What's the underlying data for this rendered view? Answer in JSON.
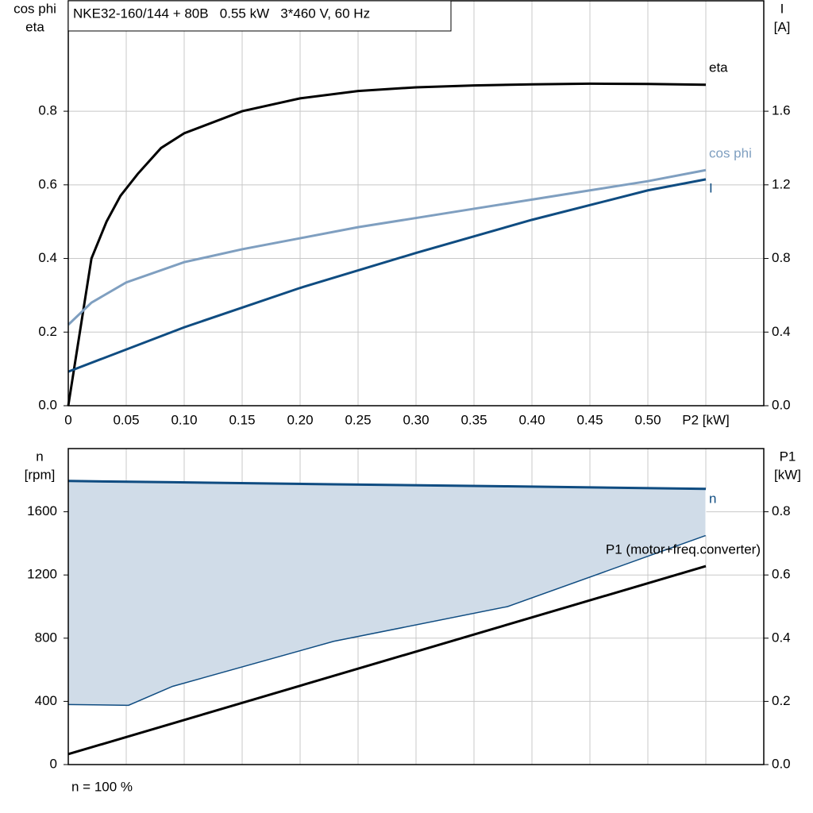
{
  "chart_data": [
    {
      "type": "line",
      "title": "NKE32-160/144 + 80B   0.55 kW   3*460 V, 60 Hz",
      "y_label": [
        "cos phi",
        "eta"
      ],
      "y2_label": [
        "I",
        "[A]"
      ],
      "xlim": [
        0,
        0.6
      ],
      "ylim": [
        0,
        1.1
      ],
      "y2lim": [
        0,
        2.2
      ],
      "xticks": [
        0,
        0.05,
        {
          "value": 0.1,
          "label": "0.10"
        },
        0.15,
        {
          "value": 0.2,
          "label": "0.20"
        },
        0.25,
        {
          "value": 0.3,
          "label": "0.30"
        },
        0.35,
        {
          "value": 0.4,
          "label": "0.40"
        },
        0.45,
        {
          "value": 0.5,
          "label": "0.50"
        },
        {
          "value": 0.55,
          "label": "P2 [kW]"
        }
      ],
      "yticks": [
        {
          "value": 0,
          "label": "0.0"
        },
        0.2,
        0.4,
        0.6,
        0.8
      ],
      "y2ticks": [
        {
          "value": 0,
          "label": "0.0"
        },
        0.4,
        0.8,
        1.2,
        1.6
      ],
      "grid": true,
      "show_xtick_labels": true,
      "series": [
        {
          "name": "eta",
          "color": "#000000",
          "x": [
            0,
            0.01,
            0.02,
            0.033,
            0.045,
            0.06,
            0.08,
            0.1,
            0.15,
            0.2,
            0.25,
            0.3,
            0.35,
            0.4,
            0.45,
            0.5,
            0.55
          ],
          "values": [
            0,
            0.2,
            0.4,
            0.5,
            0.57,
            0.63,
            0.7,
            0.74,
            0.8,
            0.835,
            0.855,
            0.865,
            0.87,
            0.873,
            0.875,
            0.874,
            0.872
          ]
        },
        {
          "name": "cos phi",
          "color": "#7f9fc0",
          "x": [
            0,
            0.02,
            0.05,
            0.1,
            0.15,
            0.2,
            0.25,
            0.3,
            0.35,
            0.4,
            0.45,
            0.5,
            0.55
          ],
          "values": [
            0.22,
            0.28,
            0.335,
            0.39,
            0.425,
            0.455,
            0.485,
            0.51,
            0.535,
            0.56,
            0.585,
            0.61,
            0.64
          ]
        },
        {
          "name": "I",
          "color": "#0f4c81",
          "axis": "y2",
          "x": [
            0,
            0.1,
            0.2,
            0.3,
            0.4,
            0.5,
            0.55
          ],
          "values": [
            0.185,
            0.426,
            0.64,
            0.83,
            1.01,
            1.17,
            1.23
          ]
        }
      ]
    },
    {
      "type": "line",
      "footer": "n = 100 %",
      "y_label": [
        "n",
        "[rpm]"
      ],
      "y2_label": [
        "P1",
        "[kW]"
      ],
      "xlim": [
        0,
        0.6
      ],
      "ylim": [
        0,
        2000
      ],
      "y2lim": [
        0,
        1
      ],
      "xticks": [
        0,
        0.05,
        0.1,
        0.15,
        0.2,
        0.25,
        0.3,
        0.35,
        0.4,
        0.45,
        0.5,
        0.55
      ],
      "yticks": [
        0,
        400,
        800,
        1200,
        1600
      ],
      "y2ticks": [
        {
          "value": 0,
          "label": "0.0"
        },
        0.2,
        0.4,
        0.6,
        0.8
      ],
      "grid": true,
      "show_xtick_labels": false,
      "series": [
        {
          "name": "n",
          "color": "#0f4c81",
          "fill": "#d0dce8",
          "x": [
            0,
            0.052,
            0.09,
            0.229,
            0.379,
            0.55
          ],
          "values": [
            1795,
            1790,
            1787,
            1774,
            1761,
            1745
          ],
          "band_lower": [
            380,
            375,
            495,
            780,
            1000,
            1450
          ]
        },
        {
          "name": "P1 (motor+freq.converter)",
          "color": "#000000",
          "axis": "y2",
          "x": [
            0,
            0.55
          ],
          "values": [
            0.033,
            0.628
          ]
        }
      ]
    }
  ]
}
